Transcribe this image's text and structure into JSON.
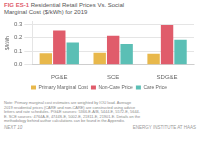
{
  "chart_data": {
    "type": "bar",
    "title": "FIG ES-1",
    "subtitle": " Residential Retail Prices Vs. Social\nMarginal Cost ($/kWh) for 2019",
    "categories": [
      "PG&E",
      "SCE",
      "SDG&E"
    ],
    "series": [
      {
        "name": "Primary Marginal Cost",
        "color": "#E8B84B",
        "values": [
          0.085,
          0.09,
          0.082
        ]
      },
      {
        "name": "Non-Care Price",
        "color": "#E05C6B",
        "values": [
          0.255,
          0.215,
          0.295
        ]
      },
      {
        "name": "Care Price",
        "color": "#5BBFB5",
        "values": [
          0.165,
          0.155,
          0.185
        ]
      }
    ],
    "ylabel": "$/kWh",
    "ylim": [
      0.0,
      0.32
    ],
    "yticks": [
      {
        "value": 0.0,
        "label": "0.0"
      },
      0.1,
      0.2,
      0.3
    ],
    "grid": true,
    "legend": "bottom",
    "annotations": [
      "Note: Primary marginal cost estimates are weighted by IOU load. Average\n2019 residential prices (CARE and non-CARE) are constructed using advice\nletters and rate schedules. PG&E sources: 5366-E-A/B, 5444-E, 5572-E, 5644-\nE. SCE sources: 4764A-E, 4744S-E, 5002-E, 21811-E, 21901-E. Details on the\nmethodology behind author calculations can be found in the Appendix.",
      "NEXT 10",
      "ENERGY INSTITUTE AT HAAS"
    ]
  }
}
